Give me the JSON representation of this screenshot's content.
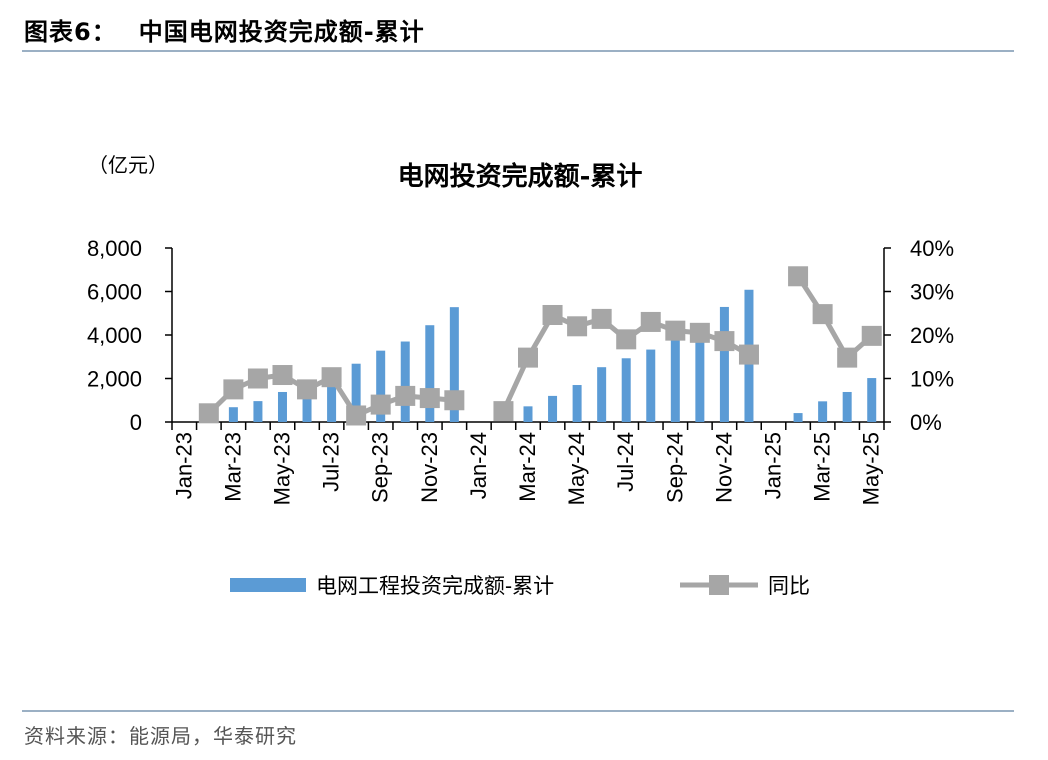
{
  "header": {
    "figure_number": "图表6：",
    "figure_title": "中国电网投资完成额-累计"
  },
  "footer": {
    "source": "资料来源：能源局，华泰研究"
  },
  "chart_data": {
    "type": "bar",
    "title": "电网投资完成额-累计",
    "y_unit_label": "（亿元）",
    "categories": [
      "Jan-23",
      "Feb-23",
      "Mar-23",
      "Apr-23",
      "May-23",
      "Jun-23",
      "Jul-23",
      "Aug-23",
      "Sep-23",
      "Oct-23",
      "Nov-23",
      "Dec-23",
      "Jan-24",
      "Feb-24",
      "Mar-24",
      "Apr-24",
      "May-24",
      "Jun-24",
      "Jul-24",
      "Aug-24",
      "Sep-24",
      "Oct-24",
      "Nov-24",
      "Dec-24",
      "Jan-25",
      "Feb-25",
      "Mar-25",
      "Apr-25",
      "May-25"
    ],
    "x_tick_labels": [
      "Jan-23",
      "Mar-23",
      "May-23",
      "Jul-23",
      "Sep-23",
      "Nov-23",
      "Jan-24",
      "Mar-24",
      "May-24",
      "Jul-24",
      "Sep-24",
      "Nov-24",
      "Jan-25",
      "Mar-25",
      "May-25"
    ],
    "ylim_left": [
      0,
      8000
    ],
    "y_ticks_left": [
      "0",
      "2,000",
      "4,000",
      "6,000",
      "8,000"
    ],
    "ylim_right": [
      0,
      0.4
    ],
    "y_ticks_right": [
      "0%",
      "10%",
      "20%",
      "30%",
      "40%"
    ],
    "legend_position": "bottom",
    "colors": {
      "bar": "#5b9bd5",
      "line": "#a6a6a6",
      "marker": "#a6a6a6"
    },
    "series": [
      {
        "name": "电网工程投资完成额-累计",
        "kind": "bar",
        "axis": "left",
        "values": [
          null,
          null,
          680,
          960,
          1380,
          1440,
          1780,
          2680,
          3280,
          3700,
          4450,
          5280,
          null,
          null,
          720,
          1200,
          1700,
          2520,
          2930,
          3330,
          3960,
          4500,
          5290,
          6080,
          null,
          410,
          950,
          1380,
          2020
        ]
      },
      {
        "name": "同比",
        "kind": "line",
        "axis": "right",
        "values": [
          null,
          0.02,
          0.075,
          0.1,
          0.108,
          0.075,
          0.103,
          0.015,
          0.04,
          0.06,
          0.055,
          0.05,
          null,
          0.025,
          0.148,
          0.246,
          0.22,
          0.237,
          0.19,
          0.23,
          0.21,
          0.205,
          0.186,
          0.155,
          null,
          0.335,
          0.248,
          0.148,
          0.198
        ]
      }
    ]
  }
}
